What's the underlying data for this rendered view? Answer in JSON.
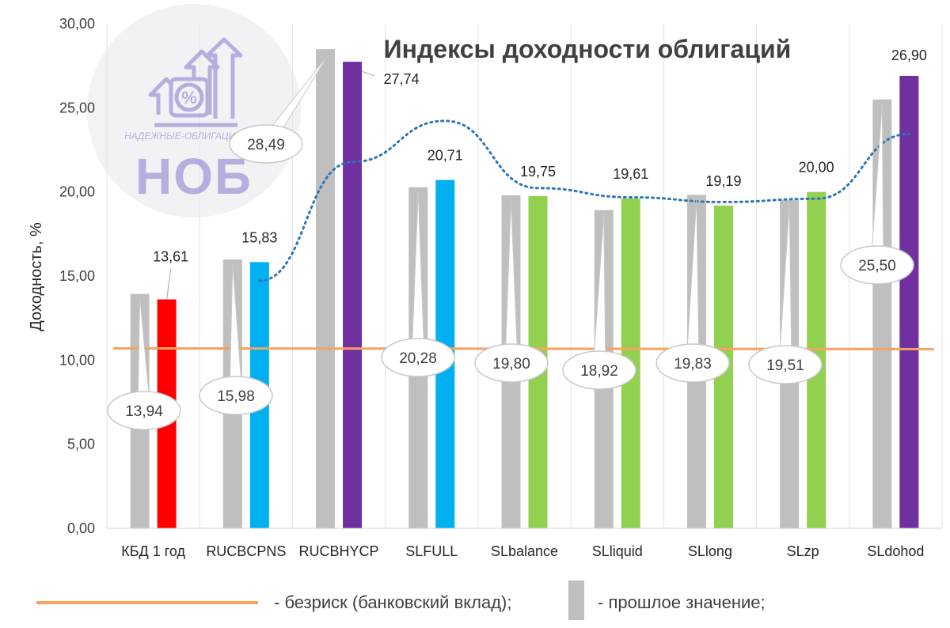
{
  "chart_data": {
    "type": "bar",
    "title": "Индексы доходности облигаций",
    "ylabel": "Доходность, %",
    "ylim": [
      0,
      30
    ],
    "yticks": [
      "0,00",
      "5,00",
      "10,00",
      "15,00",
      "20,00",
      "25,00",
      "30,00"
    ],
    "categories": [
      "КБД 1 год",
      "RUCBCPNS",
      "RUCBHYCP",
      "SLFULL",
      "SLbalance",
      "SLliquid",
      "SLlong",
      "SLzp",
      "SLdohod"
    ],
    "series": [
      {
        "name": "- прошлое значение;",
        "color": "#bfbfbf",
        "values": [
          13.94,
          15.98,
          28.49,
          20.28,
          19.8,
          18.92,
          19.83,
          19.51,
          25.5
        ],
        "labels": [
          "13,94",
          "15,98",
          "28,49",
          "20,28",
          "19,80",
          "18,92",
          "19,83",
          "19,51",
          "25,50"
        ]
      },
      {
        "colors": [
          "#ff0000",
          "#00b0f0",
          "#7030a0",
          "#00b0f0",
          "#92d050",
          "#92d050",
          "#92d050",
          "#92d050",
          "#7030a0"
        ],
        "values": [
          13.61,
          15.83,
          27.74,
          20.71,
          19.75,
          19.61,
          19.19,
          20.0,
          26.9
        ],
        "labels": [
          "13,61",
          "15,83",
          "27,74",
          "20,71",
          "19,75",
          "19,61",
          "19,19",
          "20,00",
          "26,90"
        ]
      }
    ],
    "risk_free": {
      "name": "- безриск (банковский вклад);",
      "value": 10.7,
      "color": "#f4a460"
    },
    "trendline": {
      "color": "#2e75b6",
      "style": "dotted"
    },
    "grid": "vertical",
    "legend": "bottom"
  },
  "watermark": {
    "site": "НАДЕЖНЫЕ-ОБЛИГАЦИИ.РУС",
    "mark": "НОБ"
  }
}
